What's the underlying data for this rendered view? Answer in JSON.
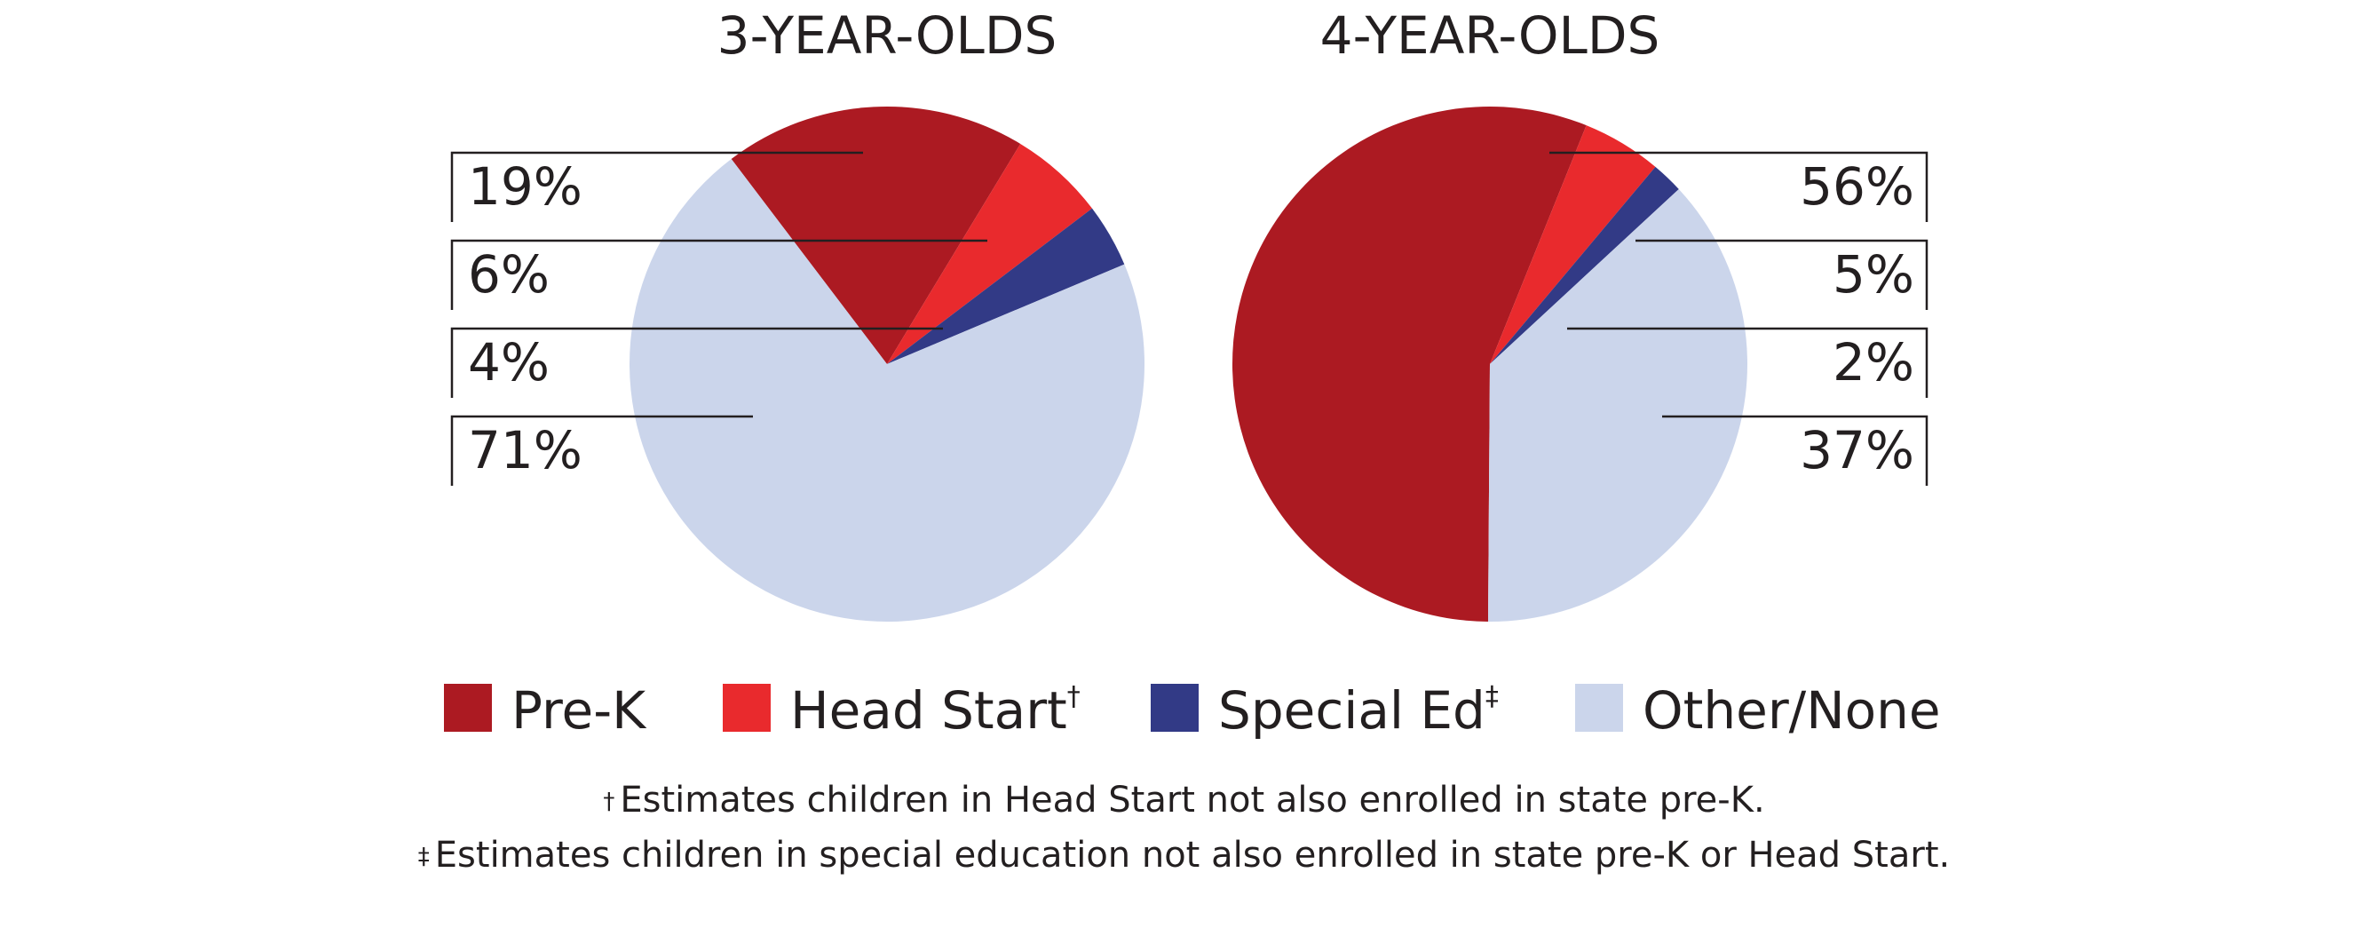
{
  "chart_data": {
    "type": "pie",
    "charts": [
      {
        "title": "3-YEAR-OLDS",
        "slices": [
          {
            "name": "Pre-K",
            "value": 19,
            "label": "19%"
          },
          {
            "name": "Head Start",
            "value": 6,
            "label": "6%"
          },
          {
            "name": "Special Ed",
            "value": 4,
            "label": "4%"
          },
          {
            "name": "Other/None",
            "value": 71,
            "label": "71%"
          }
        ],
        "label_side": "left"
      },
      {
        "title": "4-YEAR-OLDS",
        "slices": [
          {
            "name": "Pre-K",
            "value": 56,
            "label": "56%"
          },
          {
            "name": "Head Start",
            "value": 5,
            "label": "5%"
          },
          {
            "name": "Special Ed",
            "value": 2,
            "label": "2%"
          },
          {
            "name": "Other/None",
            "value": 37,
            "label": "37%"
          }
        ],
        "label_side": "right"
      }
    ],
    "legend": [
      {
        "name": "Pre-K",
        "mark": "",
        "color": "#ac1a22"
      },
      {
        "name": "Head Start",
        "mark": "†",
        "color": "#e92a2d"
      },
      {
        "name": "Special Ed",
        "mark": "‡",
        "color": "#323a86"
      },
      {
        "name": "Other/None",
        "mark": "",
        "color": "#cbd5eb"
      }
    ],
    "legend_position": "bottom"
  },
  "footnotes": [
    {
      "mark": "†",
      "text": "Estimates children in Head Start not also enrolled in state pre-K."
    },
    {
      "mark": "‡",
      "text": "Estimates children in special education not also enrolled in state pre-K or Head Start."
    }
  ]
}
